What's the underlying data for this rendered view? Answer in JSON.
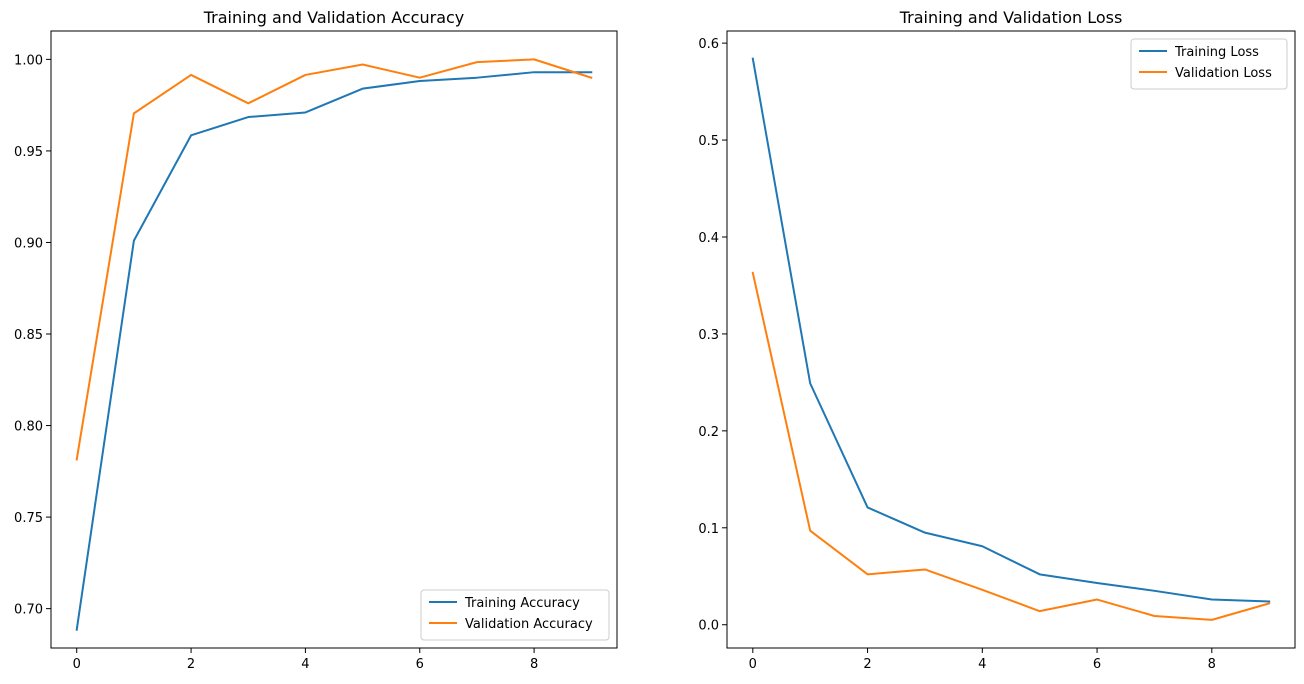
{
  "chart_data": [
    {
      "type": "line",
      "title": "Training and Validation Accuracy",
      "xlabel": "",
      "ylabel": "",
      "x": [
        0,
        1,
        2,
        3,
        4,
        5,
        6,
        7,
        8,
        9
      ],
      "xlim": [
        -0.45,
        9.45
      ],
      "ylim": [
        0.6785,
        1.0155
      ],
      "xticks": [
        0,
        2,
        4,
        6,
        8
      ],
      "yticks": [
        0.7,
        0.75,
        0.8,
        0.85,
        0.9,
        0.95,
        1.0
      ],
      "ytick_labels": [
        "0.70",
        "0.75",
        "0.80",
        "0.85",
        "0.90",
        "0.95",
        "1.00"
      ],
      "grid": false,
      "legend_position": "lower-right",
      "series": [
        {
          "name": "Training Accuracy",
          "color": "#1f77b4",
          "values": [
            0.6885,
            0.901,
            0.9585,
            0.9685,
            0.971,
            0.984,
            0.9882,
            0.99,
            0.993,
            0.993
          ]
        },
        {
          "name": "Validation Accuracy",
          "color": "#ff7f0e",
          "values": [
            0.7815,
            0.9705,
            0.9915,
            0.976,
            0.9915,
            0.9972,
            0.99,
            0.9985,
            1.0,
            0.99
          ]
        }
      ]
    },
    {
      "type": "line",
      "title": "Training and Validation Loss",
      "xlabel": "",
      "ylabel": "",
      "x": [
        0,
        1,
        2,
        3,
        4,
        5,
        6,
        7,
        8,
        9
      ],
      "xlim": [
        -0.45,
        9.45
      ],
      "ylim": [
        -0.024,
        0.6125
      ],
      "xticks": [
        0,
        2,
        4,
        6,
        8
      ],
      "yticks": [
        0.0,
        0.1,
        0.2,
        0.3,
        0.4,
        0.5,
        0.6
      ],
      "ytick_labels": [
        "0.0",
        "0.1",
        "0.2",
        "0.3",
        "0.4",
        "0.5",
        "0.6"
      ],
      "grid": false,
      "legend_position": "upper-right",
      "series": [
        {
          "name": "Training Loss",
          "color": "#1f77b4",
          "values": [
            0.584,
            0.249,
            0.121,
            0.095,
            0.081,
            0.052,
            0.043,
            0.035,
            0.026,
            0.024
          ]
        },
        {
          "name": "Validation Loss",
          "color": "#ff7f0e",
          "values": [
            0.363,
            0.097,
            0.052,
            0.057,
            0.036,
            0.014,
            0.026,
            0.009,
            0.005,
            0.022
          ]
        }
      ]
    }
  ]
}
